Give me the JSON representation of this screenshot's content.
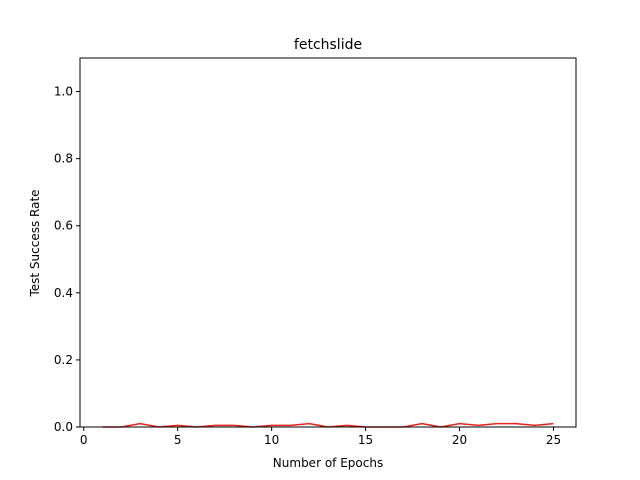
{
  "chart_data": {
    "type": "line",
    "title": "fetchslide",
    "xlabel": "Number of Epochs",
    "ylabel": "Test Success Rate",
    "xlim": [
      -0.2,
      26.2
    ],
    "ylim": [
      0.0,
      1.1
    ],
    "xticks": [
      0,
      5,
      10,
      15,
      20,
      25
    ],
    "yticks": [
      0.0,
      0.2,
      0.4,
      0.6,
      0.8,
      1.0
    ],
    "xtick_labels": [
      "0",
      "5",
      "10",
      "15",
      "20",
      "25"
    ],
    "ytick_labels": [
      "0.0",
      "0.2",
      "0.4",
      "0.6",
      "0.8",
      "1.0"
    ],
    "grid": false,
    "series": [
      {
        "color": "#e8221c",
        "x": [
          1,
          2,
          3,
          4,
          5,
          6,
          7,
          8,
          9,
          10,
          11,
          12,
          13,
          14,
          15,
          16,
          17,
          18,
          19,
          20,
          21,
          22,
          23,
          24,
          25
        ],
        "y": [
          0.0,
          0.0,
          0.01,
          0.0,
          0.005,
          0.0,
          0.005,
          0.005,
          0.0,
          0.005,
          0.005,
          0.01,
          0.0,
          0.005,
          0.0,
          0.0,
          0.0,
          0.01,
          0.0,
          0.01,
          0.005,
          0.01,
          0.01,
          0.005,
          0.01
        ]
      }
    ]
  }
}
